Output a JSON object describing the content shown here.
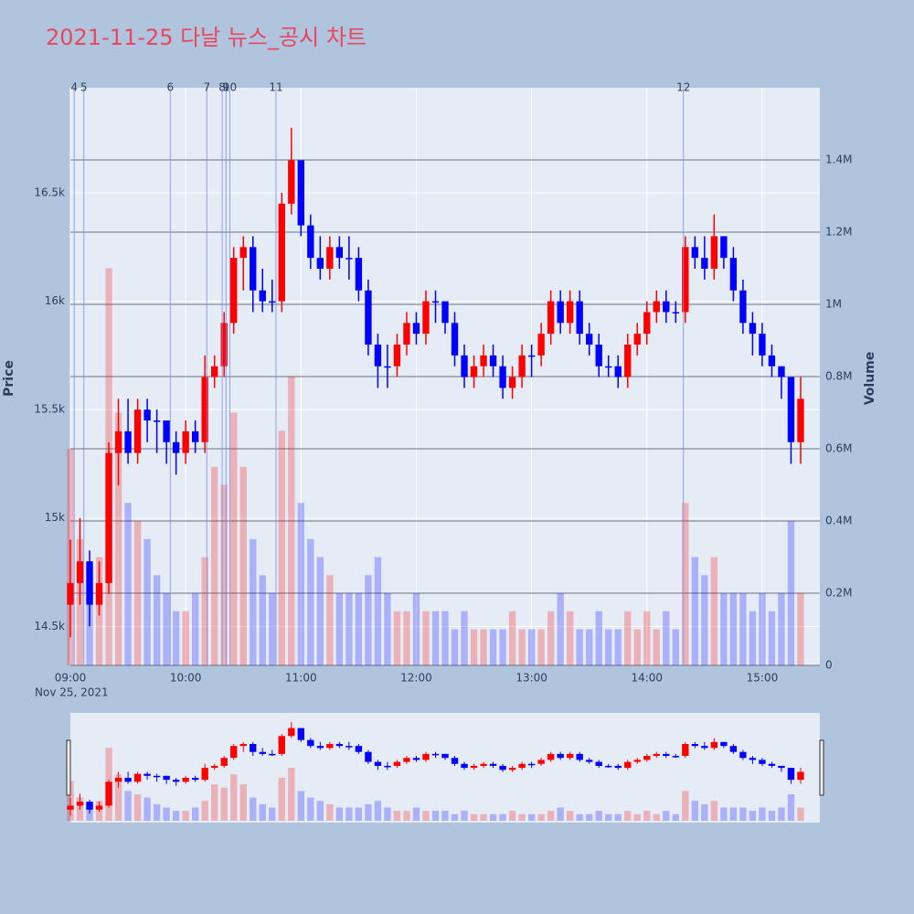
{
  "chart_data": {
    "type": "candlestick",
    "title": "2021-11-25 다날 뉴스_공시 차트",
    "x_date_label": "Nov 25, 2021",
    "yaxis_title": "Price",
    "y2axis_title": "Volume",
    "x": [
      "2021-11-25 09:00",
      "2021-11-25 09:05",
      "2021-11-25 09:10",
      "2021-11-25 09:15",
      "2021-11-25 09:20",
      "2021-11-25 09:25",
      "2021-11-25 09:30",
      "2021-11-25 09:35",
      "2021-11-25 09:40",
      "2021-11-25 09:45",
      "2021-11-25 09:50",
      "2021-11-25 09:55",
      "2021-11-25 10:00",
      "2021-11-25 10:05",
      "2021-11-25 10:10",
      "2021-11-25 10:15",
      "2021-11-25 10:20",
      "2021-11-25 10:25",
      "2021-11-25 10:30",
      "2021-11-25 10:35",
      "2021-11-25 10:40",
      "2021-11-25 10:45",
      "2021-11-25 10:50",
      "2021-11-25 10:55",
      "2021-11-25 11:00",
      "2021-11-25 11:05",
      "2021-11-25 11:10",
      "2021-11-25 11:15",
      "2021-11-25 11:20",
      "2021-11-25 11:25",
      "2021-11-25 11:30",
      "2021-11-25 11:35",
      "2021-11-25 11:40",
      "2021-11-25 11:45",
      "2021-11-25 11:50",
      "2021-11-25 11:55",
      "2021-11-25 12:00",
      "2021-11-25 12:05",
      "2021-11-25 12:10",
      "2021-11-25 12:15",
      "2021-11-25 12:20",
      "2021-11-25 12:25",
      "2021-11-25 12:30",
      "2021-11-25 12:35",
      "2021-11-25 12:40",
      "2021-11-25 12:45",
      "2021-11-25 12:50",
      "2021-11-25 12:55",
      "2021-11-25 13:00",
      "2021-11-25 13:05",
      "2021-11-25 13:10",
      "2021-11-25 13:15",
      "2021-11-25 13:20",
      "2021-11-25 13:25",
      "2021-11-25 13:30",
      "2021-11-25 13:35",
      "2021-11-25 13:40",
      "2021-11-25 13:45",
      "2021-11-25 13:50",
      "2021-11-25 13:55",
      "2021-11-25 14:00",
      "2021-11-25 14:05",
      "2021-11-25 14:10",
      "2021-11-25 14:15",
      "2021-11-25 14:20",
      "2021-11-25 14:25",
      "2021-11-25 14:30",
      "2021-11-25 14:35",
      "2021-11-25 14:40",
      "2021-11-25 14:45",
      "2021-11-25 14:50",
      "2021-11-25 14:55",
      "2021-11-25 15:00",
      "2021-11-25 15:05",
      "2021-11-25 15:10",
      "2021-11-25 15:15",
      "2021-11-25 15:20"
    ],
    "open": [
      14600,
      14700,
      14800,
      14600,
      14700,
      15300,
      15400,
      15300,
      15500,
      15450,
      15450,
      15350,
      15300,
      15400,
      15350,
      15650,
      15700,
      15900,
      16200,
      16250,
      16050,
      16000,
      16000,
      16450,
      16650,
      16350,
      16200,
      16150,
      16250,
      16200,
      16200,
      16050,
      15800,
      15700,
      15700,
      15800,
      15900,
      15850,
      16000,
      16000,
      15900,
      15750,
      15650,
      15700,
      15750,
      15700,
      15600,
      15650,
      15750,
      15750,
      15850,
      16000,
      15900,
      16000,
      15850,
      15800,
      15700,
      15700,
      15650,
      15800,
      15850,
      15950,
      16000,
      15950,
      15950,
      16250,
      16200,
      16150,
      16300,
      16200,
      16050,
      15900,
      15850,
      15750,
      15700,
      15650,
      15350
    ],
    "high": [
      14900,
      15000,
      14850,
      14800,
      15350,
      15550,
      15550,
      15550,
      15550,
      15500,
      15450,
      15400,
      15450,
      15450,
      15750,
      15750,
      15950,
      16250,
      16300,
      16300,
      16150,
      16100,
      16500,
      16800,
      16650,
      16400,
      16300,
      16300,
      16300,
      16300,
      16250,
      16100,
      15850,
      15800,
      15850,
      15950,
      15950,
      16050,
      16050,
      16000,
      15950,
      15800,
      15750,
      15800,
      15800,
      15750,
      15700,
      15800,
      15800,
      15900,
      16050,
      16050,
      16050,
      16050,
      15900,
      15850,
      15750,
      15750,
      15850,
      15900,
      16000,
      16050,
      16050,
      16000,
      16300,
      16300,
      16300,
      16400,
      16300,
      16250,
      16100,
      15950,
      15900,
      15800,
      15700,
      15650,
      15650
    ],
    "low": [
      14450,
      14600,
      14500,
      14550,
      14650,
      15150,
      15250,
      15250,
      15350,
      15300,
      15250,
      15200,
      15250,
      15300,
      15300,
      15600,
      15650,
      15850,
      16050,
      15950,
      15950,
      15950,
      15950,
      16400,
      16300,
      16150,
      16100,
      16100,
      16150,
      16100,
      16000,
      15750,
      15600,
      15600,
      15650,
      15750,
      15800,
      15800,
      15900,
      15850,
      15700,
      15600,
      15600,
      15650,
      15650,
      15550,
      15550,
      15600,
      15650,
      15700,
      15800,
      15850,
      15850,
      15800,
      15750,
      15650,
      15650,
      15600,
      15600,
      15750,
      15800,
      15900,
      15900,
      15900,
      15900,
      16150,
      16100,
      16100,
      16150,
      16000,
      15850,
      15750,
      15700,
      15650,
      15550,
      15250,
      15250
    ],
    "close": [
      14700,
      14800,
      14600,
      14700,
      15300,
      15400,
      15300,
      15500,
      15450,
      15450,
      15350,
      15300,
      15400,
      15350,
      15650,
      15700,
      15900,
      16200,
      16250,
      16050,
      16000,
      16000,
      16450,
      16650,
      16350,
      16200,
      16150,
      16250,
      16200,
      16200,
      16050,
      15800,
      15700,
      15700,
      15800,
      15900,
      15850,
      16000,
      16000,
      15900,
      15750,
      15650,
      15700,
      15750,
      15700,
      15600,
      15650,
      15750,
      15750,
      15850,
      16000,
      15900,
      16000,
      15850,
      15800,
      15700,
      15700,
      15650,
      15800,
      15850,
      15950,
      16000,
      15950,
      15950,
      16250,
      16200,
      16150,
      16300,
      16200,
      16050,
      15900,
      15850,
      15750,
      15700,
      15650,
      15350,
      15550
    ],
    "volume": [
      600000,
      350000,
      250000,
      300000,
      1100000,
      700000,
      450000,
      400000,
      350000,
      250000,
      200000,
      150000,
      150000,
      200000,
      300000,
      550000,
      500000,
      700000,
      550000,
      350000,
      250000,
      200000,
      650000,
      800000,
      450000,
      350000,
      300000,
      250000,
      200000,
      200000,
      200000,
      250000,
      300000,
      200000,
      150000,
      150000,
      200000,
      150000,
      150000,
      150000,
      100000,
      150000,
      100000,
      100000,
      100000,
      100000,
      150000,
      100000,
      100000,
      100000,
      150000,
      200000,
      150000,
      100000,
      100000,
      150000,
      100000,
      100000,
      150000,
      100000,
      150000,
      100000,
      150000,
      100000,
      450000,
      300000,
      250000,
      300000,
      200000,
      200000,
      200000,
      150000,
      200000,
      150000,
      200000,
      400000,
      200000
    ],
    "increasing_color": "#ff0000",
    "decreasing_color": "#0000ff",
    "xlim": [
      "2021-11-25 09:00",
      "2021-11-25 15:30"
    ],
    "xticks": [
      {
        "value": "2021-11-25 09:00",
        "label": "09:00"
      },
      {
        "value": "2021-11-25 10:00",
        "label": "10:00"
      },
      {
        "value": "2021-11-25 11:00",
        "label": "11:00"
      },
      {
        "value": "2021-11-25 12:00",
        "label": "12:00"
      },
      {
        "value": "2021-11-25 13:00",
        "label": "13:00"
      },
      {
        "value": "2021-11-25 14:00",
        "label": "14:00"
      },
      {
        "value": "2021-11-25 15:00",
        "label": "15:00"
      }
    ],
    "ylim": [
      14320,
      16985
    ],
    "yticks": [
      {
        "value": 14500,
        "label": "14.5k"
      },
      {
        "value": 15000,
        "label": "15k"
      },
      {
        "value": 15500,
        "label": "15.5k"
      },
      {
        "value": 16000,
        "label": "16k"
      },
      {
        "value": 16500,
        "label": "16.5k"
      }
    ],
    "y2lim": [
      0,
      1600000
    ],
    "y2ticks": [
      0,
      {
        "value": 200000,
        "label": "0.2M"
      },
      {
        "value": 400000,
        "label": "0.4M"
      },
      {
        "value": 600000,
        "label": "0.6M"
      },
      {
        "value": 800000,
        "label": "0.8M"
      },
      {
        "value": 1000000,
        "label": "1M"
      },
      {
        "value": 1200000,
        "label": "1.2M"
      },
      {
        "value": 1400000,
        "label": "1.4M"
      }
    ],
    "events": [
      {
        "time": "2021-11-25 09:02",
        "label": "4"
      },
      {
        "time": "2021-11-25 09:07",
        "label": "5"
      },
      {
        "time": "2021-11-25 09:52",
        "label": "6"
      },
      {
        "time": "2021-11-25 10:11",
        "label": "7"
      },
      {
        "time": "2021-11-25 10:19",
        "label": "8"
      },
      {
        "time": "2021-11-25 10:21",
        "label": "9"
      },
      {
        "time": "2021-11-25 10:23",
        "label": "10"
      },
      {
        "time": "2021-11-25 10:47",
        "label": "11"
      },
      {
        "time": "2021-11-25 14:19",
        "label": "12"
      }
    ],
    "rangeslider": true
  }
}
